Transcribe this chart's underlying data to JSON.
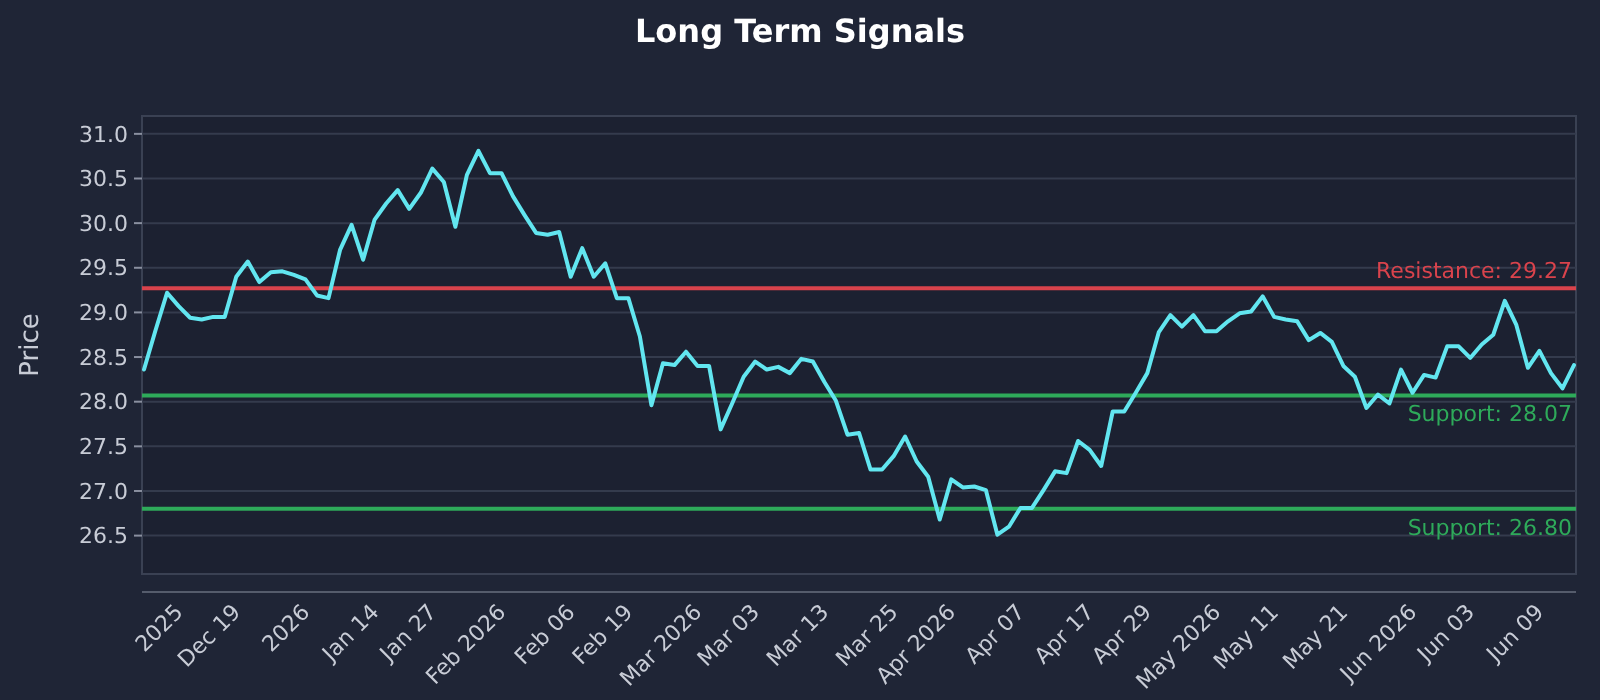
{
  "chart_data": {
    "type": "line",
    "title": "Long Term Signals",
    "ylabel": "Price",
    "categories": [
      null,
      null,
      null,
      "2025",
      null,
      null,
      null,
      null,
      "Dec 19",
      null,
      null,
      null,
      null,
      null,
      "2026",
      null,
      null,
      null,
      null,
      null,
      "Jan 14",
      null,
      null,
      null,
      null,
      "Jan 27",
      null,
      null,
      null,
      null,
      null,
      "Feb 2026",
      null,
      null,
      null,
      null,
      null,
      "Feb 06",
      null,
      null,
      null,
      null,
      "Feb 19",
      null,
      null,
      null,
      null,
      null,
      "Mar 2026",
      null,
      null,
      null,
      null,
      "Mar 03",
      null,
      null,
      null,
      null,
      null,
      "Mar 13",
      null,
      null,
      null,
      null,
      null,
      "Mar 25",
      null,
      null,
      null,
      null,
      "Apr 2026",
      null,
      null,
      null,
      null,
      null,
      "Apr 07",
      null,
      null,
      null,
      null,
      null,
      "Apr 17",
      null,
      null,
      null,
      null,
      "Apr 29",
      null,
      null,
      null,
      null,
      null,
      "May 2026",
      null,
      null,
      null,
      null,
      "May 11",
      null,
      null,
      null,
      null,
      null,
      "May 21",
      null,
      null,
      null,
      null,
      null,
      "Jun 2026",
      null,
      null,
      null,
      null,
      "Jun 03",
      null,
      null,
      null,
      null,
      null,
      "Jun 09",
      null,
      null,
      null
    ],
    "series": [
      {
        "color": "#62e6f0",
        "values": [
          28.36,
          28.8,
          29.22,
          29.07,
          28.94,
          28.92,
          28.95,
          28.95,
          29.4,
          29.57,
          29.34,
          29.45,
          29.46,
          29.42,
          29.37,
          29.19,
          29.16,
          29.7,
          29.98,
          29.59,
          30.04,
          30.22,
          30.37,
          30.16,
          30.34,
          30.61,
          30.46,
          29.96,
          30.54,
          30.81,
          30.56,
          30.56,
          30.3,
          30.09,
          29.89,
          29.87,
          29.9,
          29.4,
          29.72,
          29.4,
          29.55,
          29.16,
          29.16,
          28.73,
          27.96,
          28.43,
          28.41,
          28.56,
          28.4,
          28.4,
          27.69,
          27.98,
          28.28,
          28.45,
          28.36,
          28.39,
          28.32,
          28.48,
          28.45,
          28.22,
          28.01,
          27.63,
          27.65,
          27.24,
          27.24,
          27.39,
          27.61,
          27.33,
          27.16,
          26.68,
          27.13,
          27.04,
          27.05,
          27.01,
          26.51,
          26.6,
          26.81,
          26.81,
          27.01,
          27.22,
          27.2,
          27.56,
          27.46,
          27.28,
          27.89,
          27.89,
          28.1,
          28.32,
          28.78,
          28.97,
          28.84,
          28.97,
          28.79,
          28.79,
          28.9,
          28.99,
          29.01,
          29.18,
          28.95,
          28.92,
          28.9,
          28.69,
          28.77,
          28.67,
          28.4,
          28.28,
          27.93,
          28.08,
          27.98,
          28.36,
          28.1,
          28.3,
          28.27,
          28.62,
          28.62,
          28.49,
          28.64,
          28.75,
          29.13,
          28.86,
          28.38,
          28.57,
          28.32,
          28.15,
          28.41
        ]
      }
    ],
    "ylim": [
      26.07,
      31.2
    ],
    "yticks": [
      26.5,
      {
        "value": 27,
        "label": "27.0"
      },
      27.5,
      {
        "value": 28,
        "label": "28.0"
      },
      28.5,
      {
        "value": 29,
        "label": "29.0"
      },
      29.5,
      {
        "value": 30,
        "label": "30.0"
      },
      30.5,
      {
        "value": 31,
        "label": "31.0"
      }
    ],
    "ref_lines": [
      {
        "axis": "y",
        "value": 29.27,
        "label": "Resistance: 29.27",
        "color": "#d9434c"
      },
      {
        "axis": "y",
        "value": 28.07,
        "label": "Support: 28.07",
        "color": "#2eaa5a"
      },
      {
        "axis": "y",
        "value": 26.8,
        "label": "Support: 26.80",
        "color": "#2eaa5a"
      }
    ],
    "grid": "y",
    "line_style": "solid",
    "marker": "none"
  }
}
